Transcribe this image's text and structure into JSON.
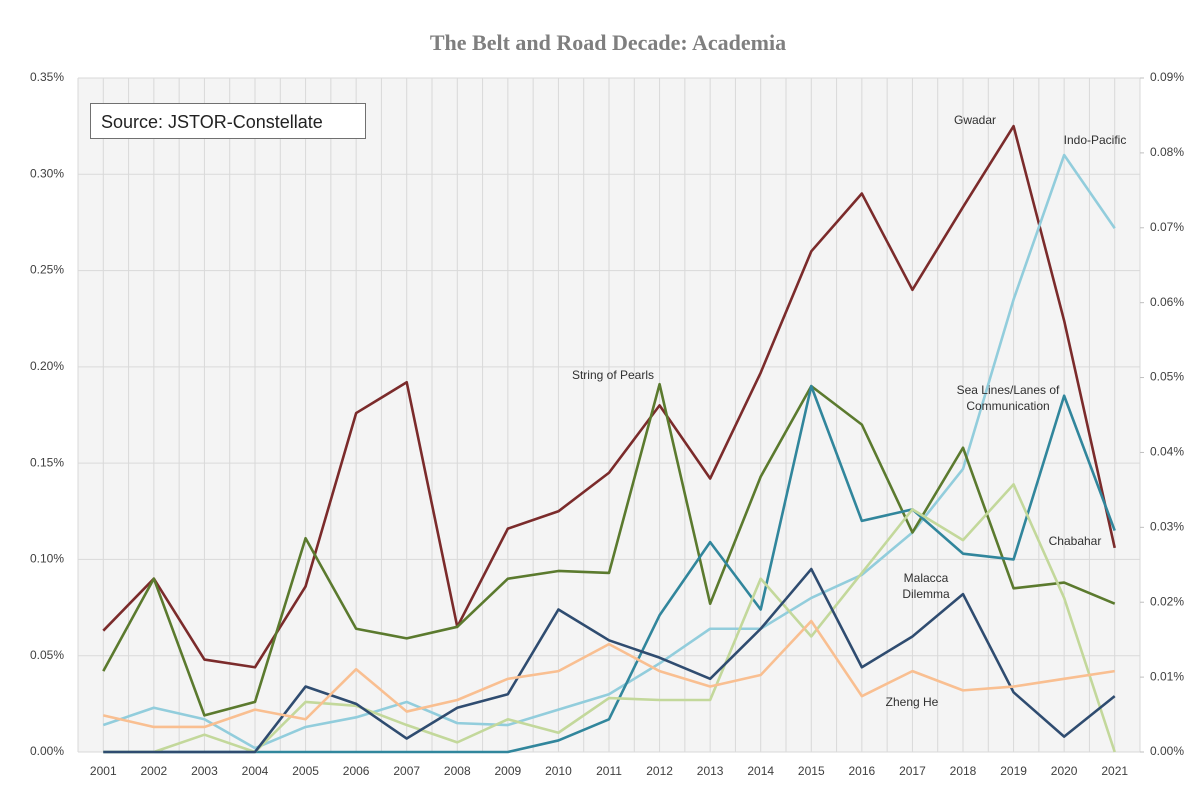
{
  "chart_data": {
    "type": "line",
    "title": "The Belt and Road Decade: Academia",
    "annotation": "Source: JSTOR-Constellate",
    "categories": [
      "2001",
      "2002",
      "2003",
      "2004",
      "2005",
      "2006",
      "2007",
      "2008",
      "2009",
      "2010",
      "2011",
      "2012",
      "2013",
      "2014",
      "2015",
      "2016",
      "2017",
      "2018",
      "2019",
      "2020",
      "2021"
    ],
    "ylim": [
      0,
      0.35
    ],
    "yticks": [
      {
        "value": 0,
        "label": "0.00%"
      },
      {
        "value": 0.05,
        "label": "0.05%"
      },
      {
        "value": 0.1,
        "label": "0.10%"
      },
      {
        "value": 0.15,
        "label": "0.15%"
      },
      {
        "value": 0.2,
        "label": "0.20%"
      },
      {
        "value": 0.25,
        "label": "0.25%"
      },
      {
        "value": 0.3,
        "label": "0.30%"
      },
      {
        "value": 0.35,
        "label": "0.35%"
      }
    ],
    "y2lim": [
      0,
      0.09
    ],
    "y2ticks": [
      {
        "value": 0,
        "label": "0.00%"
      },
      {
        "value": 0.01,
        "label": "0.01%"
      },
      {
        "value": 0.02,
        "label": "0.02%"
      },
      {
        "value": 0.03,
        "label": "0.03%"
      },
      {
        "value": 0.04,
        "label": "0.04%"
      },
      {
        "value": 0.05,
        "label": "0.05%"
      },
      {
        "value": 0.06,
        "label": "0.06%"
      },
      {
        "value": 0.07,
        "label": "0.07%"
      },
      {
        "value": 0.08,
        "label": "0.08%"
      },
      {
        "value": 0.09,
        "label": "0.09%"
      }
    ],
    "grid": true,
    "series": [
      {
        "name": "Gwadar",
        "color": "#7b2b2b",
        "values": [
          0.063,
          0.09,
          0.048,
          0.044,
          0.086,
          0.176,
          0.192,
          0.065,
          0.116,
          0.125,
          0.145,
          0.18,
          0.142,
          0.197,
          0.26,
          0.29,
          0.24,
          0.283,
          0.325,
          0.224,
          0.106
        ]
      },
      {
        "name": "Indo-Pacific",
        "color": "#92cddc",
        "values": [
          0.014,
          0.023,
          0.017,
          0.002,
          0.013,
          0.018,
          0.026,
          0.015,
          0.014,
          0.022,
          0.03,
          0.046,
          0.064,
          0.064,
          0.08,
          0.092,
          0.114,
          0.147,
          0.235,
          0.31,
          0.272
        ]
      },
      {
        "name": "String of Pearls",
        "color": "#5b7a2e",
        "values": [
          0.042,
          0.09,
          0.019,
          0.026,
          0.111,
          0.064,
          0.059,
          0.065,
          0.09,
          0.094,
          0.093,
          0.191,
          0.077,
          0.143,
          0.19,
          0.17,
          0.114,
          0.158,
          0.085,
          0.088,
          0.077
        ]
      },
      {
        "name": "Sea Lines/Lanes of Communication",
        "color": "#31869c",
        "values": [
          0,
          0,
          0,
          0,
          0,
          0,
          0,
          0,
          0,
          0.006,
          0.017,
          0.071,
          0.109,
          0.074,
          0.19,
          0.12,
          0.126,
          0.103,
          0.1,
          0.185,
          0.115
        ]
      },
      {
        "name": "Chabahar",
        "color": "#c3d89b",
        "values": [
          0,
          0,
          0.009,
          0,
          0.026,
          0.024,
          0.014,
          0.005,
          0.017,
          0.01,
          0.028,
          0.027,
          0.027,
          0.09,
          0.06,
          0.093,
          0.126,
          0.11,
          0.139,
          0.08,
          0
        ]
      },
      {
        "name": "Malacca Dilemma",
        "color": "#2f4c70",
        "values": [
          0,
          0,
          0,
          0,
          0.034,
          0.025,
          0.007,
          0.023,
          0.03,
          0.074,
          0.058,
          0.049,
          0.038,
          0.064,
          0.095,
          0.044,
          0.06,
          0.082,
          0.031,
          0.008,
          0.029
        ]
      },
      {
        "name": "Zheng He",
        "color": "#f9bf91",
        "values": [
          0.019,
          0.013,
          0.013,
          0.022,
          0.017,
          0.043,
          0.021,
          0.027,
          0.038,
          0.042,
          0.056,
          0.042,
          0.034,
          0.04,
          0.068,
          0.029,
          0.042,
          0.032,
          0.034,
          0.038,
          0.042
        ]
      }
    ]
  }
}
